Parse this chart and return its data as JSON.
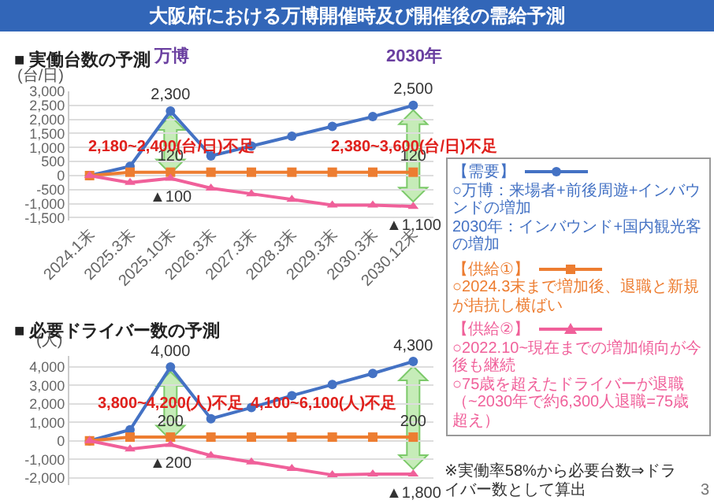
{
  "chart_data": [
    {
      "type": "line",
      "title": "大阪府における万博開催時及び開催後の需給予測",
      "subtitle": "■ 実働台数の予測",
      "ylabel": "(台/日)",
      "categories": [
        "2024.1末",
        "2025.3末",
        "2025.10末",
        "2026.3末",
        "2027.3末",
        "2028.3末",
        "2029.3末",
        "2030.3末",
        "2030.12末"
      ],
      "series": [
        {
          "name": "【需要】",
          "color": "#4472c4",
          "marker": "circle",
          "values": [
            0,
            330,
            2300,
            700,
            1050,
            1400,
            1750,
            2100,
            2500
          ],
          "value_labels": [
            null,
            null,
            "2,300",
            null,
            null,
            null,
            null,
            null,
            "2,500"
          ]
        },
        {
          "name": "【供給①】",
          "color": "#ed7d31",
          "marker": "square",
          "values": [
            0,
            120,
            120,
            120,
            120,
            120,
            120,
            120,
            120
          ],
          "value_labels": [
            null,
            null,
            "120",
            null,
            null,
            null,
            null,
            null,
            "120"
          ]
        },
        {
          "name": "【供給②】",
          "color": "#f0609a",
          "marker": "triangle",
          "values": [
            0,
            -250,
            -100,
            -450,
            -650,
            -850,
            -1050,
            -1050,
            -1100
          ]
        }
      ],
      "ylim": [
        -1600,
        3000
      ],
      "yticks": [
        {
          "value": -1500,
          "label": "-1,500"
        },
        {
          "value": -1000,
          "label": "-1,000"
        },
        -500,
        0,
        500,
        {
          "value": 1000,
          "label": "1,000"
        },
        {
          "value": 1500,
          "label": "1,500"
        },
        {
          "value": 2000,
          "label": "2,000"
        },
        {
          "value": 2500,
          "label": "2,500"
        },
        {
          "value": 3000,
          "label": "3,000"
        }
      ],
      "grid": "y",
      "legend": "right",
      "line_style": "solid",
      "annotations": [
        "万博",
        "2030年",
        "2,180~2,400(台/日)不足",
        "2,380~3,600(台/日)不足",
        "○万博：来場者+前後周遊+インバウンドの増加",
        "2030年：インバウンド+国内観光客の増加",
        "○2024.3末まで増加後、退職と新規が拮抗し横ばい",
        "○2022.10~現在までの増加傾向が今後も継続",
        "○75歳を超えたドライバーが退職",
        "（~2030年で約6,300人退職=75歳超え）",
        {
          "text": "▲100",
          "x": "2025.10末",
          "y": -100
        },
        {
          "text": "▲1,100",
          "x": "2030.12末",
          "y": -1100
        }
      ]
    },
    {
      "type": "line",
      "title": "■ 必要ドライバー数の予測",
      "ylabel": "(人)",
      "categories": [
        "2024.1末",
        "2025.3末",
        "2025.10末",
        "2026.3末",
        "2027.3末",
        "2028.3末",
        "2029.3末",
        "2030.3末",
        "2030.12末"
      ],
      "series": [
        {
          "color": "#4472c4",
          "marker": "circle",
          "values": [
            0,
            600,
            4000,
            1200,
            1800,
            2450,
            3050,
            3650,
            4300
          ],
          "value_labels": [
            null,
            null,
            "4,000",
            null,
            null,
            null,
            null,
            null,
            "4,300"
          ]
        },
        {
          "color": "#ed7d31",
          "marker": "square",
          "values": [
            0,
            200,
            200,
            200,
            200,
            200,
            200,
            200,
            200
          ],
          "value_labels": [
            null,
            null,
            "200",
            null,
            null,
            null,
            null,
            null,
            "200"
          ]
        },
        {
          "color": "#f0609a",
          "marker": "triangle",
          "values": [
            0,
            -450,
            -200,
            -800,
            -1150,
            -1500,
            -1850,
            -1800,
            -1800
          ]
        }
      ],
      "ylim": [
        -2400,
        4600
      ],
      "yticks": [
        {
          "value": -2000,
          "label": "-2,000"
        },
        {
          "value": -1000,
          "label": "-1,000"
        },
        0,
        {
          "value": 1000,
          "label": "1,000"
        },
        {
          "value": 2000,
          "label": "2,000"
        },
        {
          "value": 3000,
          "label": "3,000"
        },
        {
          "value": 4000,
          "label": "4,000"
        }
      ],
      "grid": "y",
      "tick_labels": "y",
      "line_style": "solid",
      "annotations": [
        "3,800~4,200(人)不足",
        "4,100~6,100(人)不足",
        "※実働率58%から必要台数⇒ドライバー数として算出",
        "3",
        {
          "text": "▲200",
          "x": "2025.10末",
          "y": -200
        },
        {
          "text": "▲1,800",
          "x": "2030.12末",
          "y": -1800
        }
      ]
    }
  ]
}
